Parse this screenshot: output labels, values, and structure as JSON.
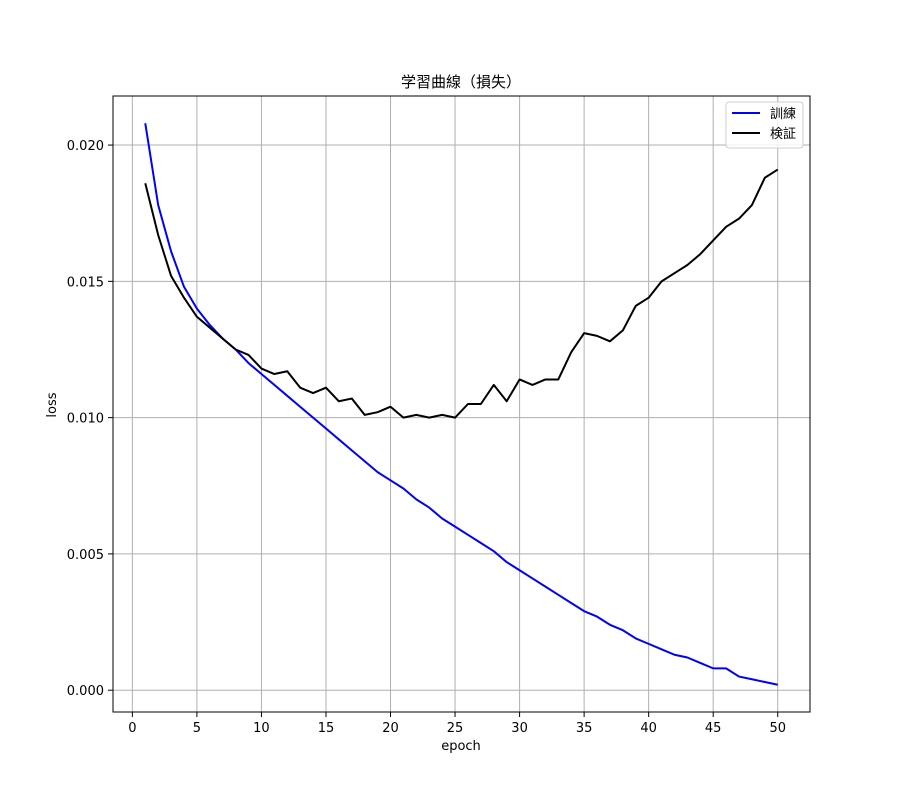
{
  "chart_data": {
    "type": "line",
    "title": "学習曲線（損失）",
    "xlabel": "epoch",
    "ylabel": "loss",
    "xlim": [
      -1.5,
      52.5
    ],
    "ylim": [
      -0.0008,
      0.0218
    ],
    "xticks": [
      0,
      5,
      10,
      15,
      20,
      25,
      30,
      35,
      40,
      45,
      50
    ],
    "xtick_labels": [
      "0",
      "5",
      "10",
      "15",
      "20",
      "25",
      "30",
      "35",
      "40",
      "45",
      "50"
    ],
    "yticks": [
      0.0,
      0.005,
      0.01,
      0.015,
      0.02
    ],
    "ytick_labels": [
      "0.000",
      "0.005",
      "0.010",
      "0.015",
      "0.020"
    ],
    "grid": true,
    "legend_position": "top-right",
    "x": [
      1,
      2,
      3,
      4,
      5,
      6,
      7,
      8,
      9,
      10,
      11,
      12,
      13,
      14,
      15,
      16,
      17,
      18,
      19,
      20,
      21,
      22,
      23,
      24,
      25,
      26,
      27,
      28,
      29,
      30,
      31,
      32,
      33,
      34,
      35,
      36,
      37,
      38,
      39,
      40,
      41,
      42,
      43,
      44,
      45,
      46,
      47,
      48,
      49,
      50
    ],
    "series": [
      {
        "name": "訓練",
        "color": "#0000ff",
        "values": [
          0.0208,
          0.0178,
          0.0161,
          0.0148,
          0.014,
          0.0134,
          0.0129,
          0.0125,
          0.012,
          0.0116,
          0.0112,
          0.0108,
          0.0104,
          0.01,
          0.0096,
          0.0092,
          0.0088,
          0.0084,
          0.008,
          0.0077,
          0.0074,
          0.007,
          0.0067,
          0.0063,
          0.006,
          0.0057,
          0.0054,
          0.0051,
          0.0047,
          0.0044,
          0.0041,
          0.0038,
          0.0035,
          0.0032,
          0.0029,
          0.0027,
          0.0024,
          0.0022,
          0.0019,
          0.0017,
          0.0015,
          0.0013,
          0.0012,
          0.001,
          0.0008,
          0.0008,
          0.0005,
          0.0004,
          0.0003,
          0.0002
        ]
      },
      {
        "name": "検証",
        "color": "#000000",
        "values": [
          0.0186,
          0.0167,
          0.0152,
          0.0144,
          0.0137,
          0.0133,
          0.0129,
          0.0125,
          0.0123,
          0.0118,
          0.0116,
          0.0117,
          0.0111,
          0.0109,
          0.0111,
          0.0106,
          0.0107,
          0.0101,
          0.0102,
          0.0104,
          0.01,
          0.0101,
          0.01,
          0.0101,
          0.01,
          0.0105,
          0.0105,
          0.0112,
          0.0106,
          0.0114,
          0.0112,
          0.0114,
          0.0114,
          0.0124,
          0.0131,
          0.013,
          0.0128,
          0.0132,
          0.0141,
          0.0144,
          0.015,
          0.0153,
          0.0156,
          0.016,
          0.0165,
          0.017,
          0.0173,
          0.0178,
          0.0188,
          0.0191
        ]
      }
    ]
  }
}
